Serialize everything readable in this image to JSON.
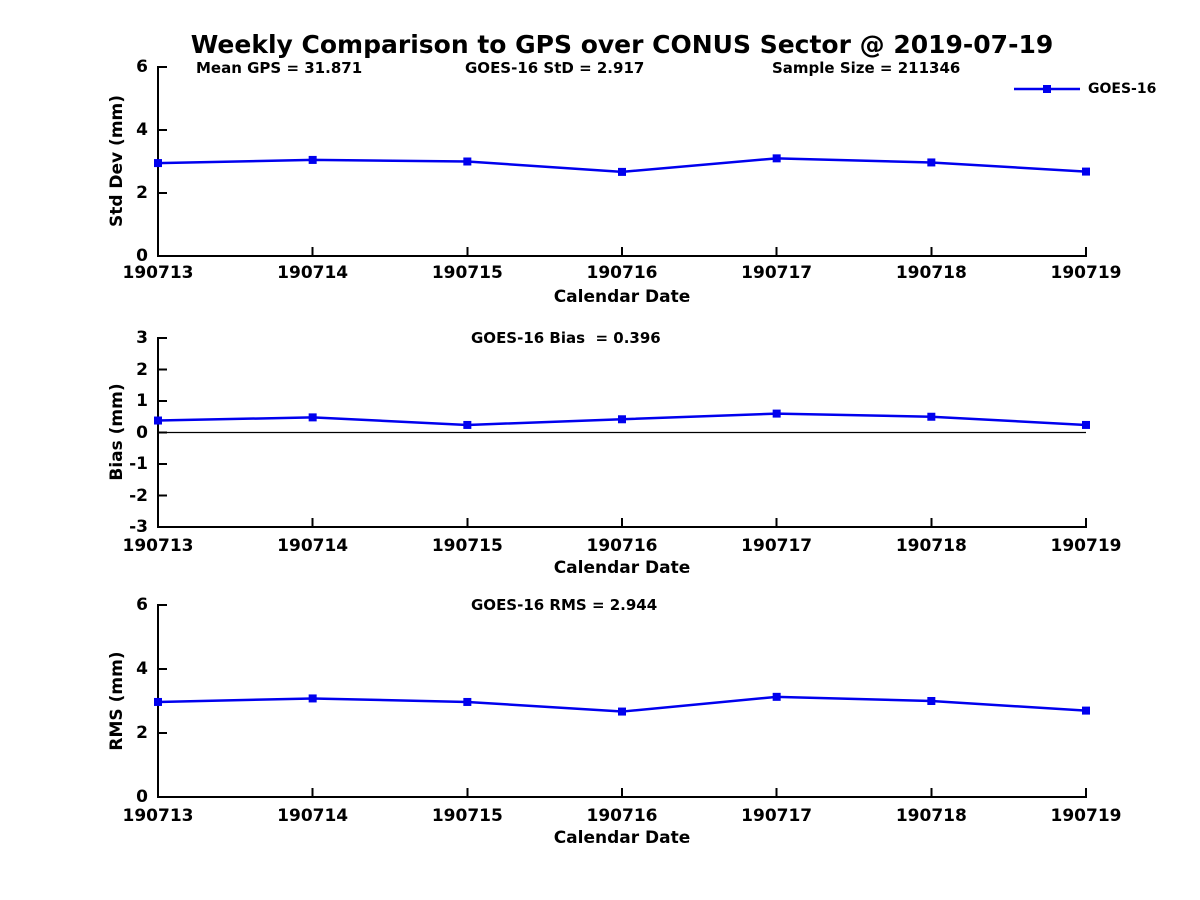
{
  "title": "Weekly Comparison to GPS over CONUS Sector @ 2019-07-19",
  "colors": {
    "series": "#0000ee",
    "axis": "#000000",
    "text": "#000000"
  },
  "legend": {
    "label": "GOES-16"
  },
  "chart_data": [
    {
      "type": "line",
      "name": "std_dev",
      "ylabel": "Std Dev (mm)",
      "xlabel": "Calendar Date",
      "ylim": [
        0,
        6
      ],
      "yticks": [
        0,
        2,
        4,
        6
      ],
      "categories": [
        "190713",
        "190714",
        "190715",
        "190716",
        "190717",
        "190718",
        "190719"
      ],
      "series": [
        {
          "name": "GOES-16",
          "values": [
            2.95,
            3.05,
            3.0,
            2.67,
            3.1,
            2.97,
            2.68
          ]
        }
      ],
      "annotations": [
        "Mean GPS = 31.871",
        "GOES-16 StD = 2.917",
        "Sample Size = 211346"
      ],
      "legend_position": "upper right",
      "grid": false,
      "zero_line": false
    },
    {
      "type": "line",
      "name": "bias",
      "ylabel": "Bias (mm)",
      "xlabel": "Calendar Date",
      "ylim": [
        -3,
        3
      ],
      "yticks": [
        3,
        2,
        1,
        0,
        -1,
        -2,
        -3
      ],
      "categories": [
        "190713",
        "190714",
        "190715",
        "190716",
        "190717",
        "190718",
        "190719"
      ],
      "series": [
        {
          "name": "GOES-16",
          "values": [
            0.38,
            0.48,
            0.24,
            0.42,
            0.6,
            0.5,
            0.24
          ]
        }
      ],
      "annotations": [
        "GOES-16 Bias  = 0.396"
      ],
      "grid": false,
      "zero_line": true
    },
    {
      "type": "line",
      "name": "rms",
      "ylabel": "RMS (mm)",
      "xlabel": "Calendar Date",
      "ylim": [
        0,
        6
      ],
      "yticks": [
        0,
        2,
        4,
        6
      ],
      "categories": [
        "190713",
        "190714",
        "190715",
        "190716",
        "190717",
        "190718",
        "190719"
      ],
      "series": [
        {
          "name": "GOES-16",
          "values": [
            2.97,
            3.08,
            2.97,
            2.67,
            3.13,
            3.0,
            2.7
          ]
        }
      ],
      "annotations": [
        "GOES-16 RMS = 2.944"
      ],
      "grid": false,
      "zero_line": false
    }
  ]
}
